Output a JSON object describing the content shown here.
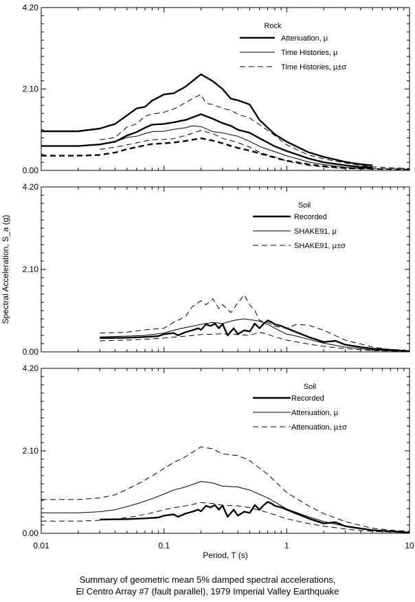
{
  "ylabel": "Spectral Acceleration, S_a (g)",
  "xlabel": "Period, T (s)",
  "caption": {
    "line1": "Summary of geometric mean 5% damped spectral accelerations,",
    "line2": "El Centro Array #7 (fault parallel), 1979 Imperial Valley Earthquake"
  },
  "chart_data": [
    {
      "type": "line",
      "panel": "top",
      "xscale": "log",
      "xlim": [
        0.01,
        10
      ],
      "ylim": [
        0,
        4.2
      ],
      "yticks": [
        "0.00",
        "2.10",
        "4.20"
      ],
      "legend_title": "Rock",
      "legend_position": "top-right",
      "series": [
        {
          "name": "Attenuation, μ",
          "style": "thick",
          "x": [
            0.01,
            0.02,
            0.03,
            0.04,
            0.05,
            0.06,
            0.07,
            0.08,
            0.1,
            0.12,
            0.15,
            0.2,
            0.25,
            0.3,
            0.35,
            0.4,
            0.5,
            0.6,
            0.7,
            0.8,
            1,
            1.5,
            2,
            3,
            4,
            5
          ],
          "y": [
            0.63,
            0.63,
            0.67,
            0.74,
            0.9,
            0.99,
            1.1,
            1.18,
            1.2,
            1.24,
            1.3,
            1.45,
            1.33,
            1.22,
            1.15,
            1.05,
            0.97,
            0.83,
            0.72,
            0.62,
            0.5,
            0.31,
            0.21,
            0.13,
            0.09,
            0.08
          ]
        },
        {
          "name": "Attenuation, μ±σ",
          "style": "thick",
          "x": [
            0.01,
            0.02,
            0.03,
            0.04,
            0.05,
            0.06,
            0.07,
            0.08,
            0.1,
            0.12,
            0.15,
            0.2,
            0.25,
            0.3,
            0.35,
            0.4,
            0.5,
            0.6,
            0.7,
            0.8,
            1,
            1.5,
            2,
            3,
            4,
            5
          ],
          "y": [
            1.01,
            1.01,
            1.08,
            1.2,
            1.42,
            1.6,
            1.64,
            1.8,
            1.96,
            1.99,
            2.16,
            2.48,
            2.3,
            2.1,
            1.85,
            1.81,
            1.7,
            1.3,
            1.1,
            0.93,
            0.74,
            0.47,
            0.35,
            0.22,
            0.16,
            0.13
          ]
        },
        {
          "name": "Attenuation, μ-σ",
          "style": "thick-dash",
          "x": [
            0.01,
            0.02,
            0.03,
            0.04,
            0.05,
            0.06,
            0.07,
            0.08,
            0.1,
            0.12,
            0.15,
            0.2,
            0.25,
            0.3,
            0.4,
            0.5,
            0.6,
            0.7,
            0.8,
            1,
            1.5,
            2,
            3,
            4,
            5
          ],
          "y": [
            0.38,
            0.38,
            0.4,
            0.46,
            0.55,
            0.6,
            0.65,
            0.68,
            0.7,
            0.72,
            0.76,
            0.83,
            0.77,
            0.7,
            0.58,
            0.51,
            0.44,
            0.38,
            0.33,
            0.25,
            0.16,
            0.11,
            0.06,
            0.05,
            0.05
          ]
        },
        {
          "name": "Time Histories, μ",
          "style": "thin",
          "x": [
            0.03,
            0.04,
            0.05,
            0.06,
            0.07,
            0.08,
            0.1,
            0.12,
            0.15,
            0.17,
            0.2,
            0.25,
            0.3,
            0.35,
            0.4,
            0.5,
            0.6,
            0.8,
            1,
            1.5,
            2,
            3,
            4,
            5,
            7,
            10
          ],
          "y": [
            0.66,
            0.74,
            0.85,
            0.88,
            0.95,
            1.0,
            1.01,
            1.06,
            1.1,
            1.15,
            1.13,
            1.0,
            0.97,
            0.92,
            0.88,
            0.75,
            0.62,
            0.48,
            0.38,
            0.22,
            0.15,
            0.08,
            0.06,
            0.05,
            0.04,
            0.03
          ]
        },
        {
          "name": "Time Histories, μ±σ",
          "style": "thin-dash",
          "x": [
            0.03,
            0.04,
            0.05,
            0.06,
            0.07,
            0.08,
            0.1,
            0.12,
            0.15,
            0.17,
            0.2,
            0.22,
            0.25,
            0.3,
            0.35,
            0.4,
            0.5,
            0.6,
            0.8,
            1,
            1.5,
            2,
            3,
            4,
            5,
            7,
            10
          ],
          "y": [
            0.79,
            0.85,
            1.12,
            1.2,
            1.4,
            1.45,
            1.5,
            1.58,
            1.75,
            1.85,
            1.96,
            1.73,
            1.7,
            1.6,
            1.55,
            1.45,
            1.35,
            1.18,
            0.9,
            0.66,
            0.4,
            0.3,
            0.19,
            0.13,
            0.09,
            0.07,
            0.05
          ]
        },
        {
          "name": "Time Histories, μ-σ",
          "style": "thin-dash",
          "x": [
            0.03,
            0.04,
            0.05,
            0.06,
            0.07,
            0.08,
            0.1,
            0.12,
            0.15,
            0.2,
            0.25,
            0.3,
            0.4,
            0.5,
            0.6,
            0.8,
            1,
            1.5,
            2,
            3,
            5,
            10
          ],
          "y": [
            0.54,
            0.6,
            0.66,
            0.71,
            0.76,
            0.79,
            0.8,
            0.82,
            0.9,
            1.03,
            0.95,
            0.83,
            0.72,
            0.6,
            0.47,
            0.35,
            0.24,
            0.13,
            0.09,
            0.05,
            0.03,
            0.02
          ]
        }
      ],
      "legend_entries": [
        {
          "label": "Attenuation, μ",
          "style": "thick"
        },
        {
          "label": "Time Histories, μ",
          "style": "thin"
        },
        {
          "label": "Time Histories, μ±σ",
          "style": "thin-dash"
        }
      ]
    },
    {
      "type": "line",
      "panel": "middle",
      "xscale": "log",
      "xlim": [
        0.01,
        10
      ],
      "ylim": [
        0,
        4.2
      ],
      "yticks": [
        "0.00",
        "2.10",
        "4.20"
      ],
      "legend_title": "Soil",
      "legend_position": "top-right",
      "series": [
        {
          "name": "Recorded",
          "style": "thick",
          "x": [
            0.03,
            0.05,
            0.07,
            0.09,
            0.1,
            0.12,
            0.13,
            0.15,
            0.17,
            0.19,
            0.2,
            0.22,
            0.24,
            0.26,
            0.28,
            0.3,
            0.33,
            0.37,
            0.4,
            0.45,
            0.5,
            0.55,
            0.6,
            0.65,
            0.7,
            0.75,
            0.8,
            0.9,
            1,
            1.2,
            1.5,
            2,
            2.5,
            3,
            4,
            5,
            7,
            10
          ],
          "y": [
            0.35,
            0.36,
            0.38,
            0.4,
            0.45,
            0.48,
            0.42,
            0.5,
            0.55,
            0.6,
            0.56,
            0.7,
            0.66,
            0.72,
            0.6,
            0.71,
            0.42,
            0.6,
            0.45,
            0.55,
            0.52,
            0.72,
            0.6,
            0.72,
            0.8,
            0.76,
            0.7,
            0.66,
            0.6,
            0.5,
            0.38,
            0.25,
            0.28,
            0.18,
            0.12,
            0.08,
            0.05,
            0.02
          ]
        },
        {
          "name": "SHAKE91, μ",
          "style": "thin",
          "x": [
            0.03,
            0.05,
            0.07,
            0.1,
            0.12,
            0.15,
            0.2,
            0.25,
            0.3,
            0.35,
            0.4,
            0.45,
            0.5,
            0.55,
            0.6,
            0.7,
            0.8,
            1,
            1.2,
            1.5,
            2,
            3,
            4,
            5,
            7,
            10
          ],
          "y": [
            0.38,
            0.4,
            0.42,
            0.48,
            0.55,
            0.62,
            0.7,
            0.75,
            0.72,
            0.78,
            0.82,
            0.84,
            0.82,
            0.8,
            0.78,
            0.7,
            0.6,
            0.45,
            0.4,
            0.32,
            0.22,
            0.12,
            0.08,
            0.05,
            0.03,
            0.02
          ]
        },
        {
          "name": "SHAKE91, μ+σ",
          "style": "thin-dash",
          "x": [
            0.03,
            0.05,
            0.07,
            0.1,
            0.12,
            0.15,
            0.17,
            0.2,
            0.22,
            0.25,
            0.28,
            0.3,
            0.35,
            0.4,
            0.45,
            0.5,
            0.55,
            0.6,
            0.7,
            0.8,
            1,
            1.2,
            1.5,
            2,
            3,
            4,
            5,
            7,
            10
          ],
          "y": [
            0.48,
            0.5,
            0.56,
            0.6,
            0.75,
            0.9,
            1.15,
            1.3,
            1.2,
            1.35,
            1.1,
            1.2,
            1.0,
            1.25,
            1.45,
            1.2,
            1.05,
            0.8,
            0.75,
            0.65,
            0.6,
            0.7,
            0.68,
            0.55,
            0.3,
            0.2,
            0.12,
            0.06,
            0.03
          ]
        },
        {
          "name": "SHAKE91, μ-σ",
          "style": "thin-dash",
          "x": [
            0.03,
            0.05,
            0.07,
            0.1,
            0.15,
            0.2,
            0.25,
            0.3,
            0.35,
            0.4,
            0.5,
            0.6,
            0.7,
            0.8,
            1,
            1.5,
            2,
            3,
            5,
            10
          ],
          "y": [
            0.28,
            0.3,
            0.32,
            0.35,
            0.4,
            0.44,
            0.45,
            0.46,
            0.45,
            0.44,
            0.42,
            0.5,
            0.45,
            0.38,
            0.3,
            0.2,
            0.14,
            0.08,
            0.03,
            0.01
          ]
        }
      ],
      "legend_entries": [
        {
          "label": "Recorded",
          "style": "thick"
        },
        {
          "label": "SHAKE91, μ",
          "style": "thin"
        },
        {
          "label": "SHAKE91, μ±σ",
          "style": "thin-dash"
        }
      ]
    },
    {
      "type": "line",
      "panel": "bottom",
      "xscale": "log",
      "xlim": [
        0.01,
        10
      ],
      "ylim": [
        0,
        4.2
      ],
      "yticks": [
        "0.00",
        "2.10",
        "4.20"
      ],
      "xticks": [
        "0.01",
        "0.1",
        "1",
        "10"
      ],
      "legend_title": "Soil",
      "legend_position": "top-right",
      "series": [
        {
          "name": "Recorded",
          "style": "thick",
          "x": [
            0.03,
            0.05,
            0.07,
            0.09,
            0.1,
            0.12,
            0.13,
            0.15,
            0.17,
            0.19,
            0.2,
            0.22,
            0.24,
            0.26,
            0.28,
            0.3,
            0.33,
            0.37,
            0.4,
            0.45,
            0.5,
            0.55,
            0.6,
            0.65,
            0.7,
            0.75,
            0.8,
            0.9,
            1,
            1.2,
            1.5,
            2,
            2.5,
            3,
            4,
            5,
            7,
            10
          ],
          "y": [
            0.35,
            0.36,
            0.38,
            0.4,
            0.45,
            0.48,
            0.42,
            0.5,
            0.55,
            0.6,
            0.56,
            0.7,
            0.66,
            0.72,
            0.6,
            0.71,
            0.42,
            0.6,
            0.45,
            0.55,
            0.52,
            0.72,
            0.6,
            0.72,
            0.8,
            0.76,
            0.7,
            0.66,
            0.6,
            0.5,
            0.38,
            0.25,
            0.28,
            0.18,
            0.12,
            0.08,
            0.05,
            0.02
          ]
        },
        {
          "name": "Attenuation, μ",
          "style": "thin",
          "x": [
            0.01,
            0.02,
            0.03,
            0.04,
            0.05,
            0.06,
            0.08,
            0.1,
            0.12,
            0.15,
            0.2,
            0.25,
            0.3,
            0.4,
            0.5,
            0.7,
            1,
            1.5,
            2,
            3,
            4,
            5,
            7,
            10
          ],
          "y": [
            0.52,
            0.52,
            0.55,
            0.6,
            0.68,
            0.75,
            0.88,
            1.0,
            1.1,
            1.18,
            1.32,
            1.28,
            1.2,
            1.18,
            1.1,
            0.9,
            0.62,
            0.42,
            0.3,
            0.18,
            0.12,
            0.08,
            0.05,
            0.03
          ]
        },
        {
          "name": "Attenuation, μ+σ",
          "style": "thin-dash",
          "x": [
            0.01,
            0.02,
            0.03,
            0.04,
            0.05,
            0.06,
            0.08,
            0.1,
            0.12,
            0.15,
            0.2,
            0.25,
            0.3,
            0.4,
            0.5,
            0.7,
            1,
            1.5,
            2,
            3,
            4,
            5,
            7,
            10
          ],
          "y": [
            0.86,
            0.86,
            0.9,
            0.98,
            1.12,
            1.24,
            1.46,
            1.65,
            1.8,
            1.95,
            2.2,
            2.15,
            2.02,
            1.98,
            1.85,
            1.5,
            1.04,
            0.7,
            0.5,
            0.3,
            0.2,
            0.13,
            0.08,
            0.05
          ]
        },
        {
          "name": "Attenuation, μ-σ",
          "style": "thin-dash",
          "x": [
            0.01,
            0.02,
            0.03,
            0.04,
            0.05,
            0.06,
            0.08,
            0.1,
            0.12,
            0.15,
            0.2,
            0.25,
            0.3,
            0.4,
            0.5,
            0.7,
            1,
            1.5,
            2,
            3,
            4,
            5,
            7,
            10
          ],
          "y": [
            0.31,
            0.31,
            0.33,
            0.36,
            0.4,
            0.44,
            0.52,
            0.6,
            0.65,
            0.7,
            0.78,
            0.76,
            0.71,
            0.7,
            0.65,
            0.53,
            0.37,
            0.25,
            0.18,
            0.11,
            0.07,
            0.05,
            0.03,
            0.02
          ]
        }
      ],
      "legend_entries": [
        {
          "label": "Recorded",
          "style": "thick"
        },
        {
          "label": "Attenuation, μ",
          "style": "thin"
        },
        {
          "label": "Attenuation, μ±σ",
          "style": "thin-dash"
        }
      ]
    }
  ]
}
